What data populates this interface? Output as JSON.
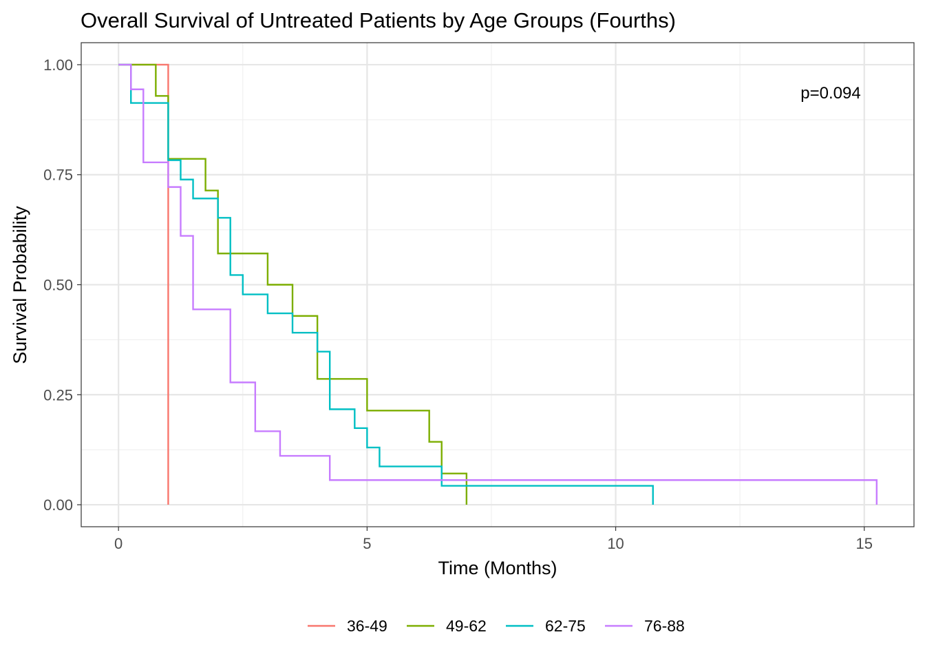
{
  "chart_data": {
    "type": "line",
    "subtype": "kaplan-meier step",
    "title": "Overall Survival of Untreated Patients by Age Groups (Fourths)",
    "xlabel": "Time (Months)",
    "ylabel": "Survival Probability",
    "xlim": [
      -0.75,
      16
    ],
    "ylim": [
      -0.05,
      1.05
    ],
    "x_ticks": [
      0,
      5,
      10,
      15
    ],
    "y_ticks": [
      0,
      0.25,
      0.5,
      0.75,
      1
    ],
    "x_tick_labels": [
      "0",
      "5",
      "10",
      "15"
    ],
    "y_tick_labels": [
      "0.00",
      "0.25",
      "0.50",
      "0.75",
      "1.00"
    ],
    "grid": true,
    "legend_position": "bottom",
    "annotation": "p=0.094",
    "series": [
      {
        "name": "36-49",
        "color": "#F8766D",
        "steps": [
          [
            0,
            1.0
          ],
          [
            1.0,
            0.0
          ]
        ]
      },
      {
        "name": "49-62",
        "color": "#7CAE00",
        "steps": [
          [
            0,
            1.0
          ],
          [
            0.75,
            0.929
          ],
          [
            1.0,
            0.786
          ],
          [
            1.75,
            0.714
          ],
          [
            2.0,
            0.571
          ],
          [
            3.0,
            0.5
          ],
          [
            3.5,
            0.429
          ],
          [
            4.0,
            0.286
          ],
          [
            5.0,
            0.214
          ],
          [
            6.25,
            0.143
          ],
          [
            6.5,
            0.071
          ],
          [
            7.0,
            0.0
          ]
        ]
      },
      {
        "name": "62-75",
        "color": "#00BFC4",
        "steps": [
          [
            0,
            1.0
          ],
          [
            0.25,
            0.913
          ],
          [
            1.0,
            0.783
          ],
          [
            1.25,
            0.739
          ],
          [
            1.5,
            0.696
          ],
          [
            2.0,
            0.652
          ],
          [
            2.25,
            0.522
          ],
          [
            2.5,
            0.478
          ],
          [
            3.0,
            0.435
          ],
          [
            3.5,
            0.391
          ],
          [
            4.0,
            0.348
          ],
          [
            4.25,
            0.217
          ],
          [
            4.75,
            0.174
          ],
          [
            5.0,
            0.13
          ],
          [
            5.25,
            0.087
          ],
          [
            6.5,
            0.043
          ],
          [
            10.75,
            0.0
          ]
        ]
      },
      {
        "name": "76-88",
        "color": "#C77CFF",
        "steps": [
          [
            0,
            1.0
          ],
          [
            0.25,
            0.944
          ],
          [
            0.5,
            0.778
          ],
          [
            1.0,
            0.722
          ],
          [
            1.25,
            0.611
          ],
          [
            1.5,
            0.444
          ],
          [
            2.25,
            0.278
          ],
          [
            2.75,
            0.167
          ],
          [
            3.25,
            0.111
          ],
          [
            4.25,
            0.056
          ],
          [
            15.25,
            0.0
          ]
        ]
      }
    ]
  }
}
